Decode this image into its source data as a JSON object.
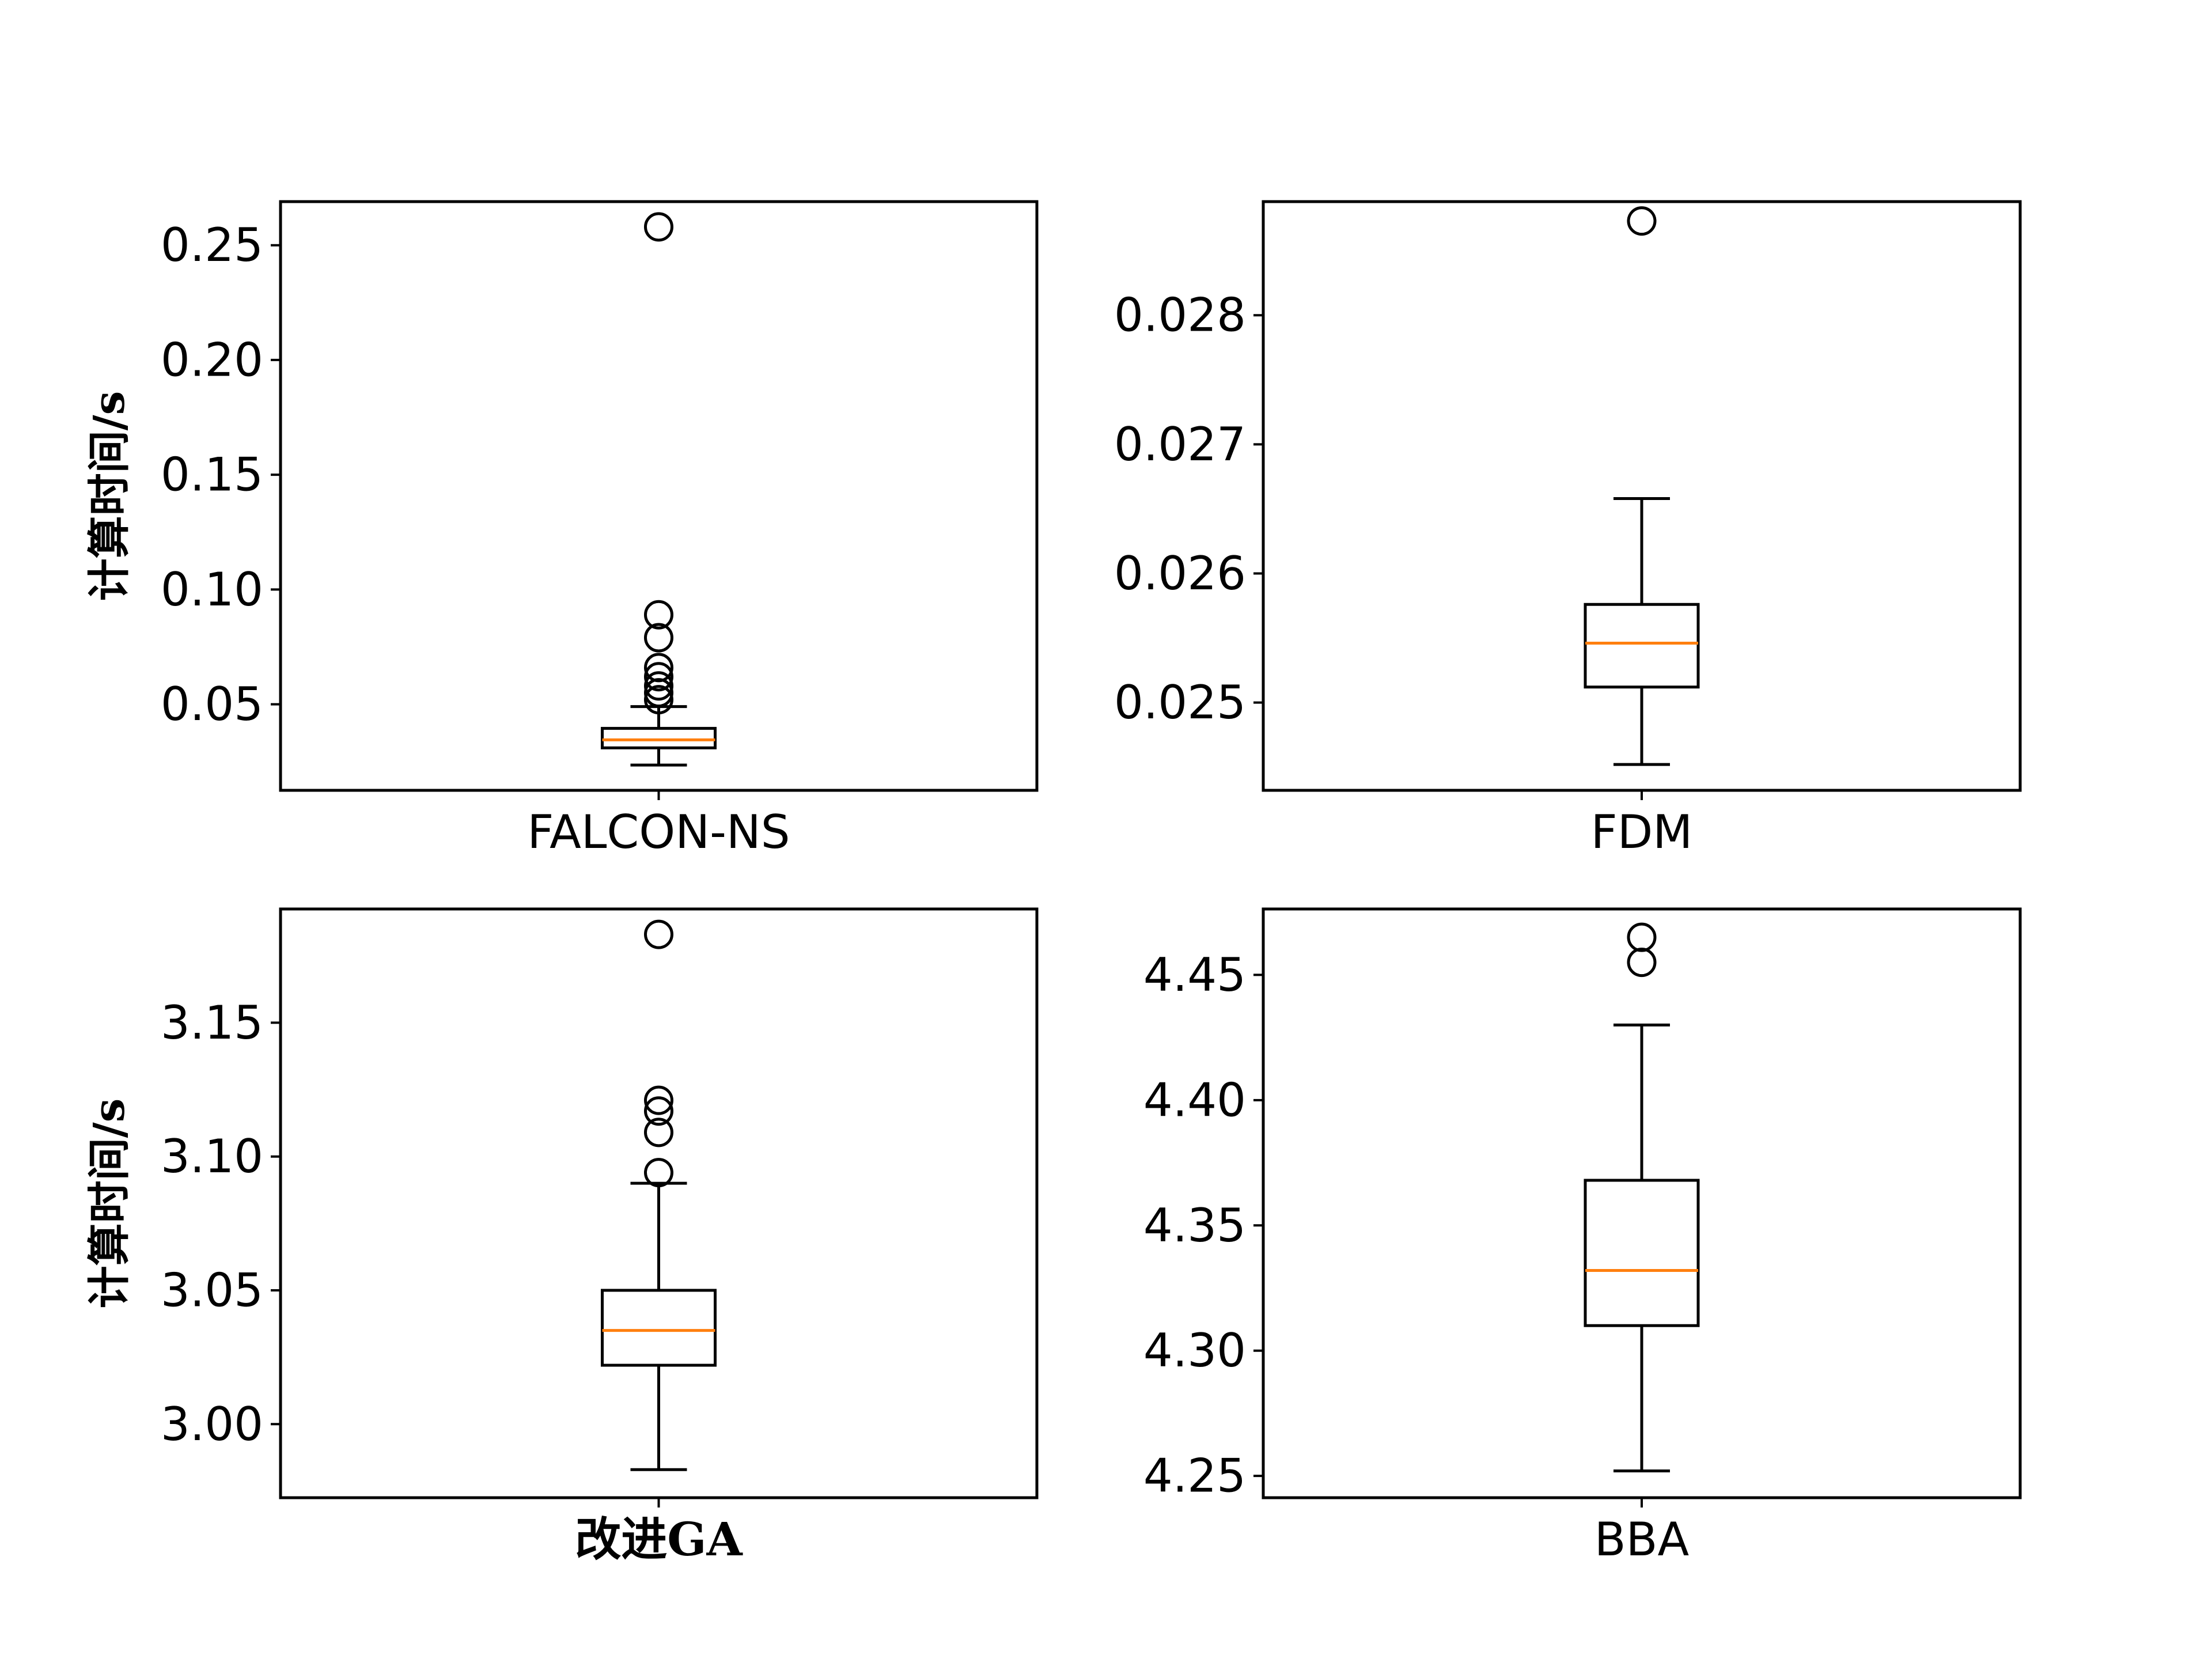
{
  "chart_data": [
    {
      "type": "boxplot",
      "category": "FALCON-NS",
      "ylabel": "计算时间/s",
      "ylim": [
        0.0125,
        0.269
      ],
      "yticks": [
        {
          "value": 0.05,
          "label": "0.05"
        },
        {
          "value": 0.1,
          "label": "0.10"
        },
        {
          "value": 0.15,
          "label": "0.15"
        },
        {
          "value": 0.2,
          "label": "0.20"
        },
        {
          "value": 0.25,
          "label": "0.25"
        }
      ],
      "box": {
        "whisker_low": 0.0235,
        "q1": 0.031,
        "median": 0.0345,
        "q3": 0.0395,
        "whisker_high": 0.049
      },
      "outliers": [
        0.258,
        0.089,
        0.079,
        0.066,
        0.062,
        0.058,
        0.055,
        0.052
      ],
      "grid": false
    },
    {
      "type": "boxplot",
      "category": "FDM",
      "ylabel": "",
      "ylim": [
        0.02432,
        0.02888
      ],
      "yticks": [
        {
          "value": 0.025,
          "label": "0.025"
        },
        {
          "value": 0.026,
          "label": "0.026"
        },
        {
          "value": 0.027,
          "label": "0.027"
        },
        {
          "value": 0.028,
          "label": "0.028"
        }
      ],
      "box": {
        "whisker_low": 0.02452,
        "q1": 0.02512,
        "median": 0.02546,
        "q3": 0.02576,
        "whisker_high": 0.02658
      },
      "outliers": [
        0.02873
      ],
      "grid": false
    },
    {
      "type": "boxplot",
      "category": "改进GA",
      "ylabel": "计算时间/s",
      "ylim": [
        2.9725,
        3.1925
      ],
      "yticks": [
        {
          "value": 3.0,
          "label": "3.00"
        },
        {
          "value": 3.05,
          "label": "3.05"
        },
        {
          "value": 3.1,
          "label": "3.10"
        },
        {
          "value": 3.15,
          "label": "3.15"
        }
      ],
      "box": {
        "whisker_low": 2.983,
        "q1": 3.022,
        "median": 3.035,
        "q3": 3.05,
        "whisker_high": 3.09
      },
      "outliers": [
        3.183,
        3.121,
        3.117,
        3.109,
        3.094
      ],
      "grid": false
    },
    {
      "type": "boxplot",
      "category": "BBA",
      "ylabel": "",
      "ylim": [
        4.2413,
        4.4763
      ],
      "yticks": [
        {
          "value": 4.25,
          "label": "4.25"
        },
        {
          "value": 4.3,
          "label": "4.30"
        },
        {
          "value": 4.35,
          "label": "4.35"
        },
        {
          "value": 4.4,
          "label": "4.40"
        },
        {
          "value": 4.45,
          "label": "4.45"
        }
      ],
      "box": {
        "whisker_low": 4.252,
        "q1": 4.31,
        "median": 4.332,
        "q3": 4.368,
        "whisker_high": 4.43
      },
      "outliers": [
        4.465,
        4.455
      ],
      "grid": false
    }
  ],
  "colors": {
    "median": "#ff7f0e",
    "box": "#000000",
    "background": "#ffffff"
  }
}
